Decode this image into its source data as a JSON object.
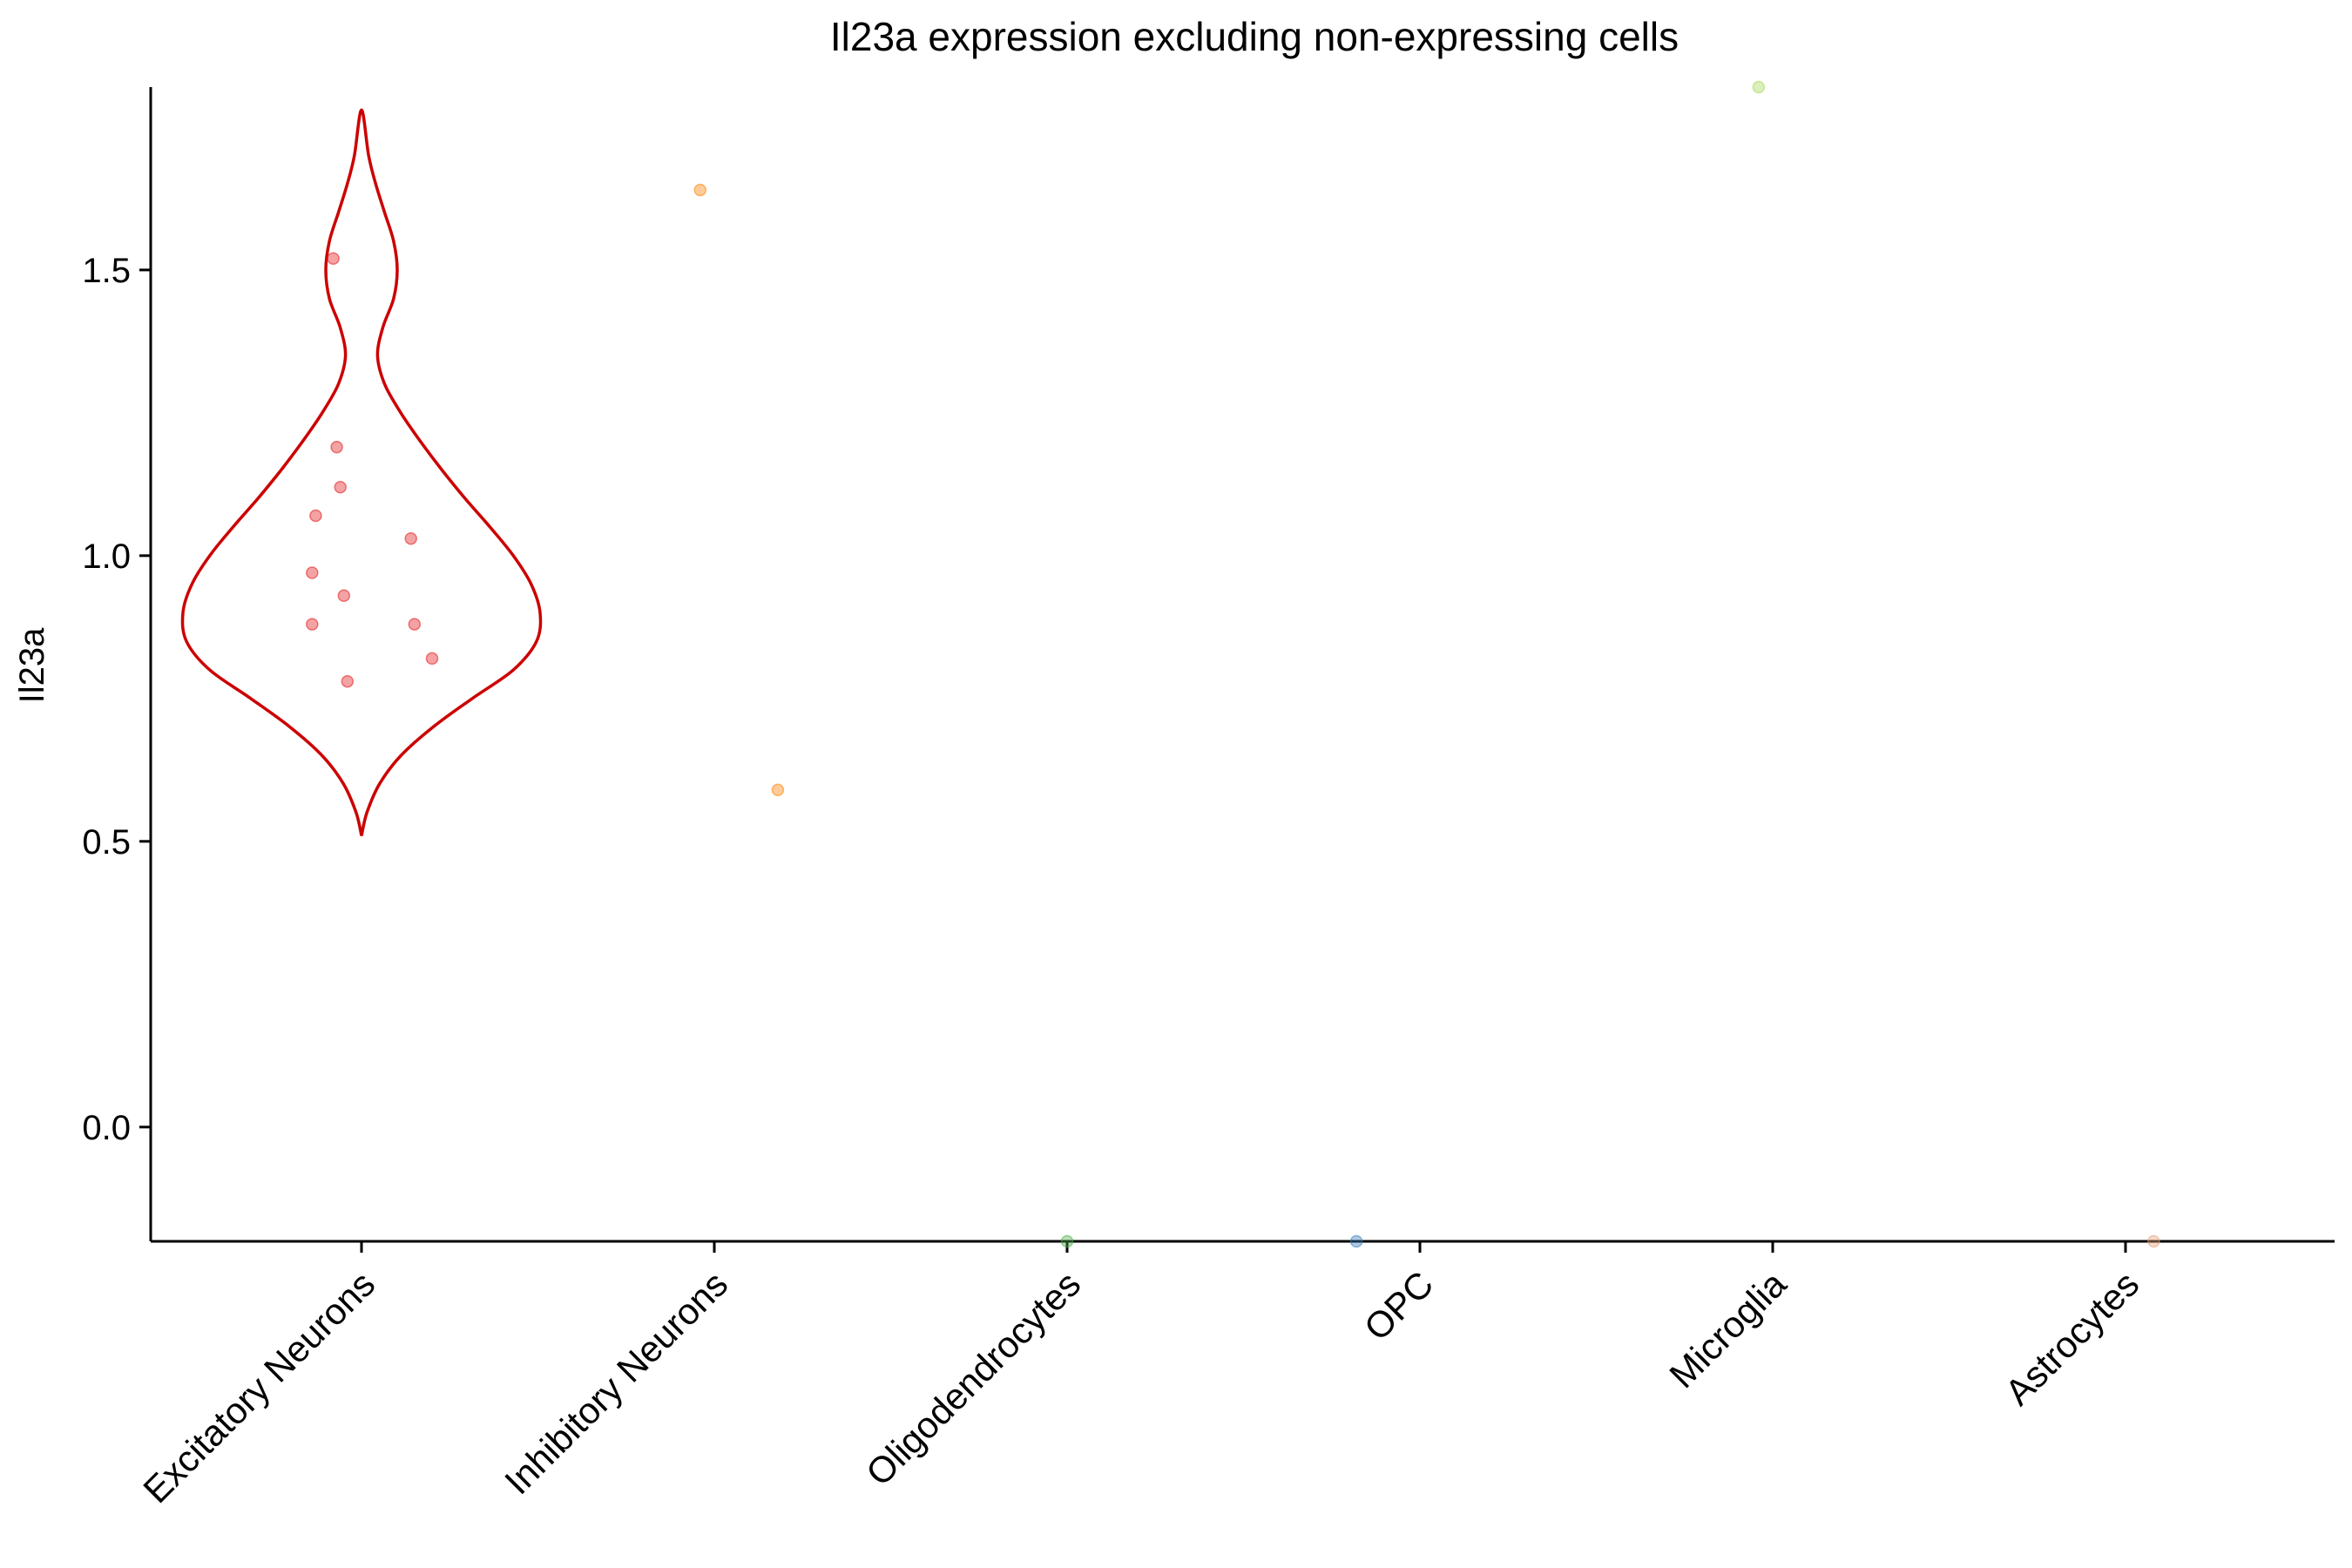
{
  "chart_data": {
    "type": "violin",
    "title": "Il23a expression excluding non-expressing cells",
    "xlabel": "",
    "ylabel": "Il23a",
    "ylim": [
      -0.2,
      1.82
    ],
    "yticks": [
      "0.0",
      "0.5",
      "1.0",
      "1.5"
    ],
    "grid": false,
    "legend": "none",
    "categories": [
      "Excitatory Neurons",
      "Inhibitory Neurons",
      "Oligodendrocytes",
      "OPC",
      "Microglia",
      "Astrocytes"
    ],
    "colors": [
      "#E41A1C",
      "#FF7F00",
      "#4DAF4A",
      "#377EB8",
      "#A6D854",
      "#E7A07A"
    ],
    "violin": {
      "category": "Excitatory Neurons",
      "color": "#CC0000",
      "y": [
        0.51,
        0.55,
        0.6,
        0.65,
        0.7,
        0.75,
        0.8,
        0.85,
        0.9,
        0.95,
        1.0,
        1.05,
        1.1,
        1.15,
        1.2,
        1.25,
        1.3,
        1.35,
        1.4,
        1.45,
        1.5,
        1.55,
        1.6,
        1.65,
        1.7,
        1.78
      ],
      "density": [
        0.0,
        0.03,
        0.1,
        0.22,
        0.4,
        0.62,
        0.85,
        0.98,
        1.0,
        0.95,
        0.85,
        0.72,
        0.58,
        0.45,
        0.33,
        0.22,
        0.13,
        0.09,
        0.12,
        0.18,
        0.2,
        0.18,
        0.13,
        0.08,
        0.04,
        0.0
      ]
    },
    "points": [
      {
        "category": "Excitatory Neurons",
        "jitter": -0.08,
        "y": 1.52
      },
      {
        "category": "Excitatory Neurons",
        "jitter": -0.07,
        "y": 1.19
      },
      {
        "category": "Excitatory Neurons",
        "jitter": -0.06,
        "y": 1.12
      },
      {
        "category": "Excitatory Neurons",
        "jitter": -0.13,
        "y": 1.07
      },
      {
        "category": "Excitatory Neurons",
        "jitter": 0.14,
        "y": 1.03
      },
      {
        "category": "Excitatory Neurons",
        "jitter": -0.14,
        "y": 0.97
      },
      {
        "category": "Excitatory Neurons",
        "jitter": -0.05,
        "y": 0.93
      },
      {
        "category": "Excitatory Neurons",
        "jitter": -0.14,
        "y": 0.88
      },
      {
        "category": "Excitatory Neurons",
        "jitter": 0.15,
        "y": 0.88
      },
      {
        "category": "Excitatory Neurons",
        "jitter": 0.2,
        "y": 0.82
      },
      {
        "category": "Excitatory Neurons",
        "jitter": -0.04,
        "y": 0.78
      },
      {
        "category": "Inhibitory Neurons",
        "jitter": -0.04,
        "y": 1.64
      },
      {
        "category": "Inhibitory Neurons",
        "jitter": 0.18,
        "y": 0.59
      },
      {
        "category": "Microglia",
        "jitter": -0.04,
        "y": 1.82
      },
      {
        "category": "Oligodendrocytes",
        "jitter": 0.0,
        "y": -0.2
      },
      {
        "category": "OPC",
        "jitter": -0.18,
        "y": -0.2
      },
      {
        "category": "Astrocytes",
        "jitter": 0.08,
        "y": -0.2
      }
    ]
  }
}
